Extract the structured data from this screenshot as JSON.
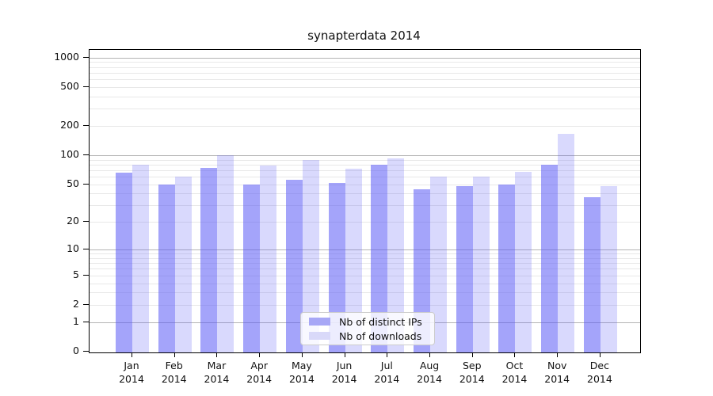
{
  "chart_data": {
    "type": "bar",
    "title": "synapterdata 2014",
    "categories": [
      "Jan",
      "Feb",
      "Mar",
      "Apr",
      "May",
      "Jun",
      "Jul",
      "Aug",
      "Sep",
      "Oct",
      "Nov",
      "Dec"
    ],
    "year_label": "2014",
    "series": [
      {
        "name": "Nb of distinct IPs",
        "values": [
          66,
          50,
          74,
          50,
          56,
          52,
          79,
          44,
          48,
          50,
          80,
          37
        ],
        "alpha": 0.55
      },
      {
        "name": "Nb of downloads",
        "values": [
          80,
          60,
          100,
          78,
          90,
          73,
          93,
          60,
          60,
          67,
          165,
          48
        ],
        "alpha": 0.23
      }
    ],
    "y_axis": {
      "scale": "log10(1+v)",
      "tick_values": [
        0,
        1,
        2,
        5,
        10,
        20,
        50,
        100,
        200,
        500,
        1000
      ],
      "major_grid_values": [
        1,
        10,
        100,
        1000
      ],
      "minor_grid_decades": [
        1,
        10,
        100
      ],
      "top_value": 1200
    },
    "legend_position": "inside-bottom-center",
    "grid": true
  },
  "colors": {
    "bar_base": "#5a5af5",
    "swatch_ips": "#a7a7f6",
    "swatch_downloads": "#d9d9f9",
    "major_grid": "#b4b4b4",
    "minor_grid": "#e8e8e8",
    "axis": "#000000",
    "text": "#111111"
  }
}
